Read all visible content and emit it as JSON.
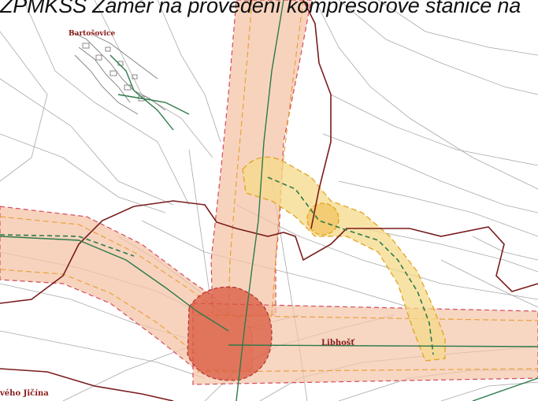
{
  "header": {
    "title": "ZPMKSS Záměr na provedení kompresorové stanice na"
  },
  "places": [
    {
      "id": "bartosovice",
      "label": "Bartošovice"
    },
    {
      "id": "libhost",
      "label": "Libhošť"
    },
    {
      "id": "jicina",
      "label": "vého Jičína"
    }
  ],
  "colors": {
    "corridor_fill": "#f4c4a8",
    "corridor_border": "#d24a5c",
    "corridor_inner": "#e8a23a",
    "variant_fill": "#f6d98a",
    "variant_border": "#e0a320",
    "focus_fill": "#d9583f",
    "boundary": "#7a1b1b",
    "pipeline": "#2d7a4a",
    "parcel_lines": "#9a9a9a"
  }
}
